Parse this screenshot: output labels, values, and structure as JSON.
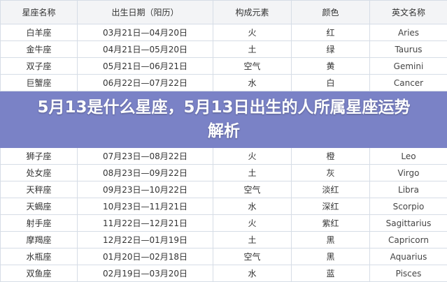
{
  "headers": [
    "星座名称",
    "出生日期（阳历）",
    "构成元素",
    "颜色",
    "英文名称"
  ],
  "rows": [
    [
      "白羊座",
      "03月21日—04月20日",
      "火",
      "红",
      "Aries"
    ],
    [
      "金牛座",
      "04月21日—05月20日",
      "土",
      "绿",
      "Taurus"
    ],
    [
      "双子座",
      "05月21日—06月21日",
      "空气",
      "黄",
      "Gemini"
    ],
    [
      "巨蟹座",
      "06月22日—07月22日",
      "水",
      "白",
      "Cancer"
    ],
    [
      "狮子座",
      "07月23日—08月22日",
      "火",
      "橙",
      "Leo"
    ],
    [
      "处女座",
      "08月23日—09月22日",
      "土",
      "灰",
      "Virgo"
    ],
    [
      "天秤座",
      "09月23日—10月22日",
      "空气",
      "淡红",
      "Libra"
    ],
    [
      "天蝎座",
      "10月23日—11月21日",
      "水",
      "深红",
      "Scorpio"
    ],
    [
      "射手座",
      "11月22日—12月21日",
      "火",
      "紫红",
      "Sagittarius"
    ],
    [
      "摩羯座",
      "12月22日—01月19日",
      "土",
      "黑",
      "Capricorn"
    ],
    [
      "水瓶座",
      "01月20日—02月18日",
      "空气",
      "黑",
      "Aquarius"
    ],
    [
      "双鱼座",
      "02月19日—03月20日",
      "水",
      "蓝",
      "Pisces"
    ]
  ],
  "title": "5月13是什么星座，5月13日出生的人所属星座运势解析"
}
